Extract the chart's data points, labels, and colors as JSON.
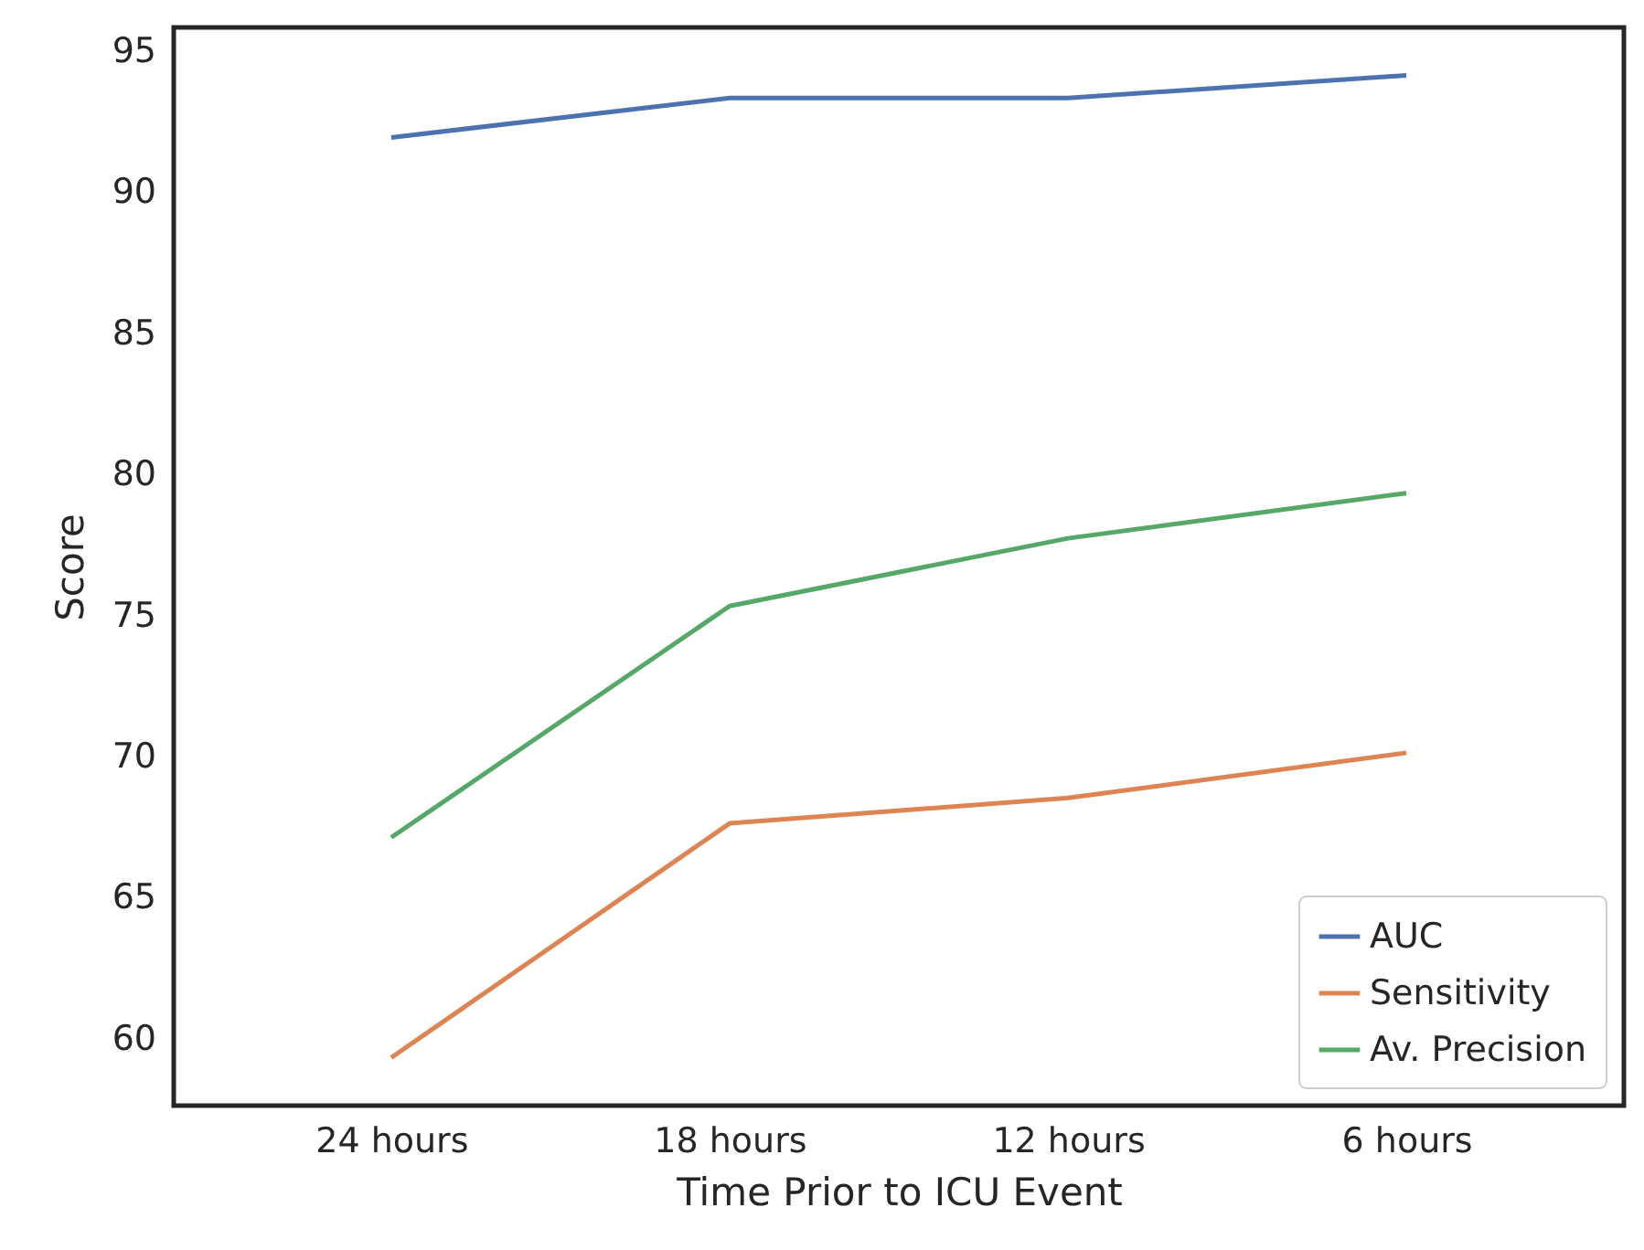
{
  "chart_data": {
    "type": "line",
    "xlabel": "Time Prior to ICU Event",
    "ylabel": "Score",
    "categories": [
      "24 hours",
      "18 hours",
      "12 hours",
      "6 hours"
    ],
    "series": [
      {
        "name": "AUC",
        "color": "#4c72b0",
        "values": [
          91.9,
          93.3,
          93.3,
          94.1
        ]
      },
      {
        "name": "Sensitivity",
        "color": "#dd8452",
        "values": [
          59.3,
          67.6,
          68.5,
          70.1
        ]
      },
      {
        "name": "Av. Precision",
        "color": "#55a868",
        "values": [
          67.1,
          75.3,
          77.7,
          79.3
        ]
      }
    ],
    "ylim": [
      57.6,
      95.8
    ],
    "yticks": [
      60,
      65,
      70,
      75,
      80,
      85,
      90,
      95
    ],
    "grid": false,
    "legend": "bottom right",
    "marker": "none",
    "line_style": "solid"
  }
}
